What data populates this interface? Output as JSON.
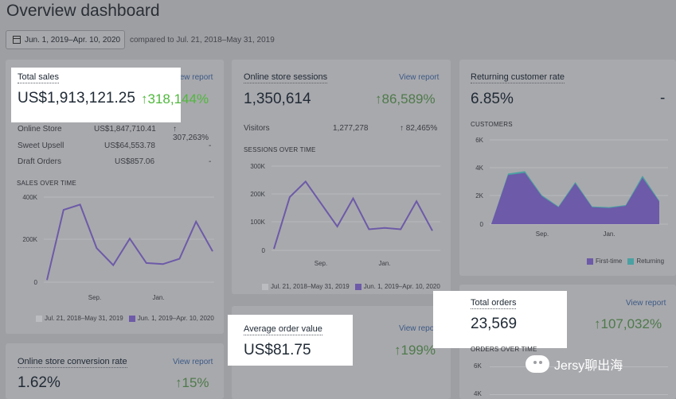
{
  "page": {
    "title": "Overview dashboard"
  },
  "date_range": {
    "label": "Jun. 1, 2019–Apr. 10, 2020",
    "compared": "compared to Jul. 21, 2018–May 31, 2019"
  },
  "view_report": "View report",
  "total_sales": {
    "title": "Total sales",
    "value": "US$1,913,121.25",
    "pct": "↑318,144%",
    "rows": [
      {
        "name": "Online Store",
        "value": "US$1,847,710.41",
        "pct": "↑ 307,263%"
      },
      {
        "name": "Sweet Upsell",
        "value": "US$64,553.78",
        "pct": "-"
      },
      {
        "name": "Draft Orders",
        "value": "US$857.06",
        "pct": "-"
      }
    ],
    "chart_title": "SALES OVER TIME",
    "y_ticks": [
      "400K",
      "200K",
      "0"
    ],
    "x_ticks": [
      "Sep.",
      "Jan."
    ],
    "legend": [
      "Jul. 21, 2018–May 31, 2019",
      "Jun. 1, 2019–Apr. 10, 2020"
    ]
  },
  "sessions": {
    "title": "Online store sessions",
    "value": "1,350,614",
    "pct": "↑86,589%",
    "row": {
      "name": "Visitors",
      "value": "1,277,278",
      "pct": "↑ 82,465%"
    },
    "chart_title": "SESSIONS OVER TIME",
    "y_ticks": [
      "300K",
      "200K",
      "100K",
      "0"
    ],
    "x_ticks": [
      "Sep.",
      "Jan."
    ],
    "legend": [
      "Jul. 21, 2018–May 31, 2019",
      "Jun. 1, 2019–Apr. 10, 2020"
    ]
  },
  "returning": {
    "title": "Returning customer rate",
    "value": "6.85%",
    "pct": "-",
    "chart_title": "CUSTOMERS",
    "y_ticks": [
      "6K",
      "4K",
      "2K",
      "0"
    ],
    "x_ticks": [
      "Sep.",
      "Jan."
    ],
    "legend": [
      "First-time",
      "Returning"
    ]
  },
  "aov": {
    "title": "Average order value",
    "value": "US$81.75",
    "pct": "↑199%"
  },
  "conversion": {
    "title": "Online store conversion rate",
    "value": "1.62%",
    "pct": "↑15%"
  },
  "orders": {
    "title": "Total orders",
    "value": "23,569",
    "pct": "↑107,032%",
    "chart_title": "ORDERS OVER TIME",
    "y_ticks": [
      "6K",
      "4K"
    ]
  },
  "watermark": "Jersy聊出海",
  "colors": {
    "accent": "#5c6ac4",
    "positive": "#50b83c",
    "returning": "#47c1bf"
  },
  "chart_data": [
    {
      "type": "line",
      "title": "SALES OVER TIME",
      "ylim": [
        0,
        400000
      ],
      "series": [
        {
          "name": "Jun. 1, 2019–Apr. 10, 2020",
          "values": [
            10000,
            340000,
            365000,
            160000,
            80000,
            205000,
            90000,
            85000,
            110000,
            285000,
            145000
          ]
        }
      ]
    },
    {
      "type": "line",
      "title": "SESSIONS OVER TIME",
      "ylim": [
        0,
        300000
      ],
      "series": [
        {
          "name": "Jun. 1, 2019–Apr. 10, 2020",
          "values": [
            5000,
            190000,
            245000,
            165000,
            85000,
            185000,
            75000,
            80000,
            75000,
            175000,
            70000
          ]
        }
      ]
    },
    {
      "type": "area",
      "title": "CUSTOMERS",
      "ylim": [
        0,
        6000
      ],
      "series": [
        {
          "name": "First-time",
          "values": [
            0,
            3500,
            3650,
            2000,
            1200,
            2900,
            1200,
            1150,
            1300,
            3300,
            1600
          ]
        },
        {
          "name": "Returning",
          "values": [
            0,
            100,
            120,
            80,
            60,
            100,
            60,
            60,
            60,
            150,
            70
          ]
        }
      ]
    }
  ]
}
